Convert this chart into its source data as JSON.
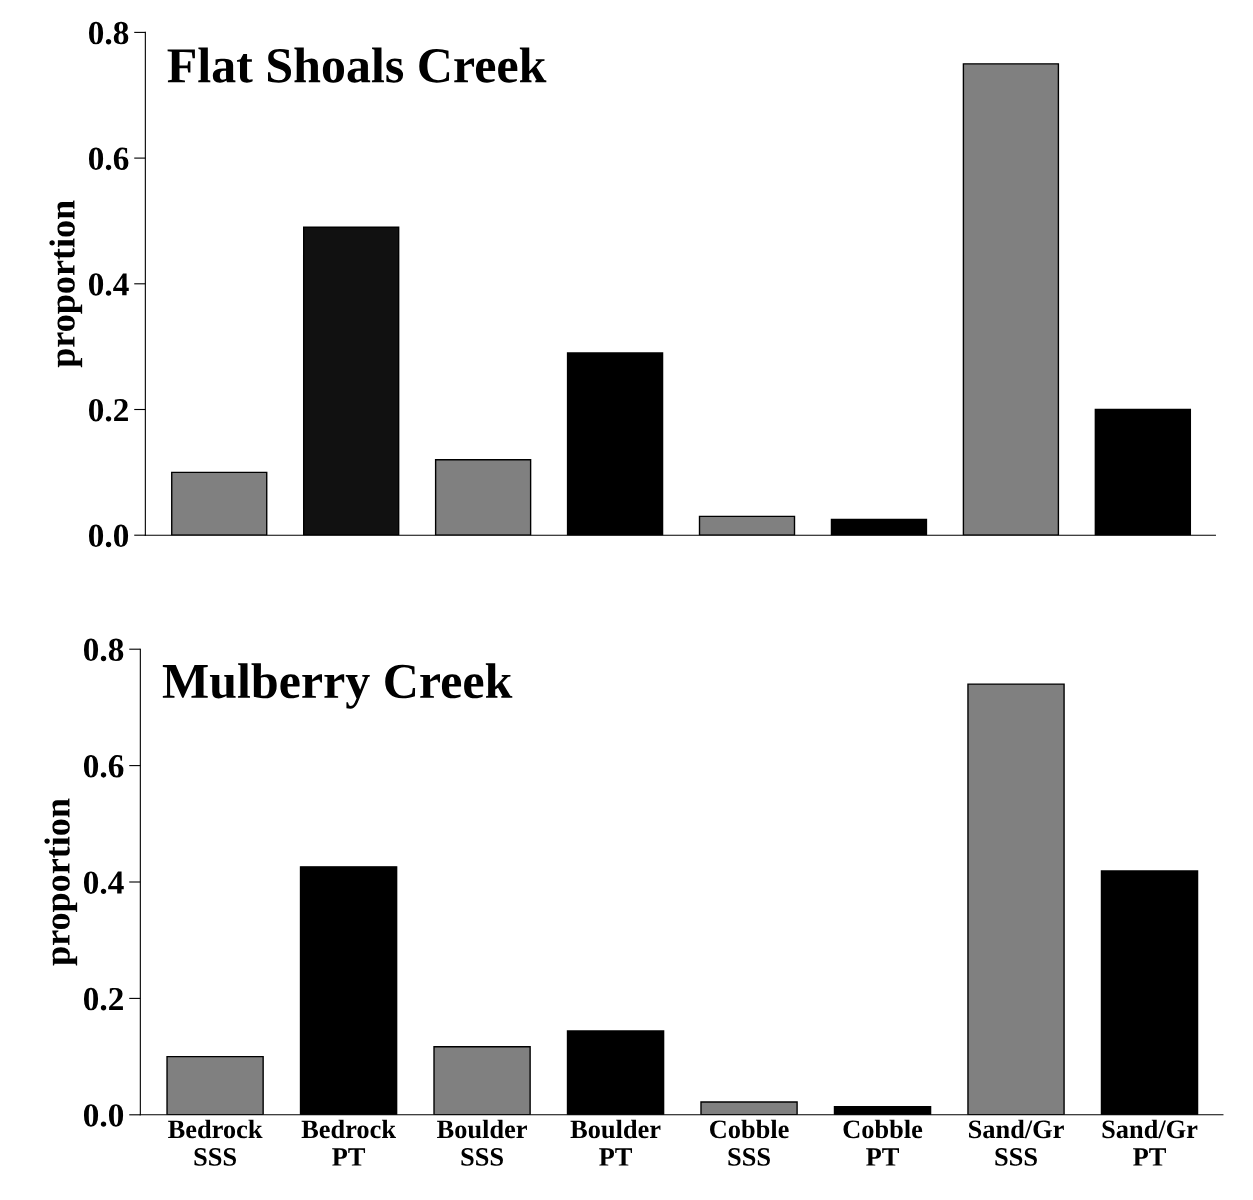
{
  "chart_data": [
    {
      "type": "bar",
      "title": "Flat Shoals Creek",
      "ylabel": "proportion",
      "categories": [
        null,
        null,
        null,
        null,
        null,
        null,
        null,
        null
      ],
      "values": [
        0.1,
        0.49,
        0.12,
        0.29,
        0.03,
        0.025,
        0.75,
        0.2
      ],
      "colors": [
        "#808080",
        "#111111",
        "#808080",
        "#000000",
        "#808080",
        "#000000",
        "#808080",
        "#000000"
      ],
      "ylim": [
        0,
        0.8
      ],
      "yticks": [
        {
          "value": 0,
          "label": "0.0"
        },
        0.2,
        0.4,
        0.6,
        0.8
      ],
      "grid": false,
      "legend": false
    },
    {
      "type": "bar",
      "title": "Mulberry Creek",
      "ylabel": "proportion",
      "categories": [
        "Bedrock\nSSS",
        "Bedrock\nPT",
        "Boulder\nSSS",
        "Boulder\nPT",
        "Cobble\nSSS",
        "Cobble\nPT",
        "Sand/Gr\nSSS",
        "Sand/Gr\nPT"
      ],
      "values": [
        0.1,
        0.426,
        0.117,
        0.144,
        0.022,
        0.014,
        0.74,
        0.419
      ],
      "colors": [
        "#808080",
        "#000000",
        "#808080",
        "#000000",
        "#808080",
        "#000000",
        "#808080",
        "#000000"
      ],
      "ylim": [
        0,
        0.8
      ],
      "yticks": [
        {
          "value": 0,
          "label": "0.0"
        },
        0.2,
        0.4,
        0.6,
        0.8
      ],
      "grid": false,
      "legend": false
    }
  ]
}
